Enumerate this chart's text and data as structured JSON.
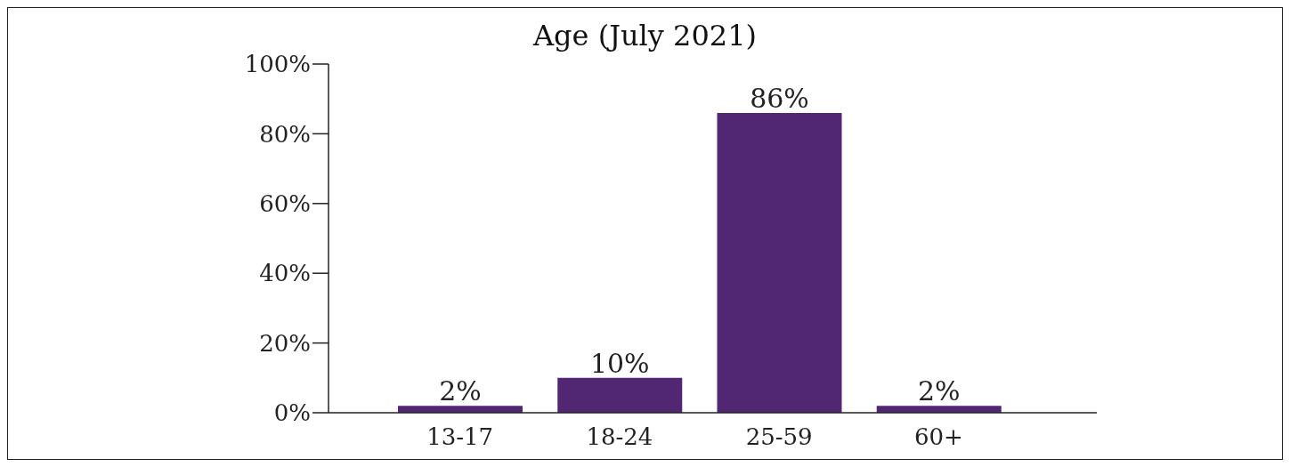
{
  "chart_data": {
    "type": "bar",
    "title": "Age (July 2021)",
    "categories": [
      "13-17",
      "18-24",
      "25-59",
      "60+"
    ],
    "values": [
      2,
      10,
      86,
      2
    ],
    "color": "#512673",
    "value_labels": [
      "2%",
      "10%",
      "86%",
      "2%"
    ],
    "ylim": [
      0,
      100
    ],
    "yticks": [
      {
        "value": 0,
        "label": "0%"
      },
      {
        "value": 20,
        "label": "20%"
      },
      {
        "value": 40,
        "label": "40%"
      },
      {
        "value": 60,
        "label": "60%"
      },
      {
        "value": 80,
        "label": "80%"
      },
      {
        "value": 100,
        "label": "100%"
      }
    ],
    "grid": false,
    "legend": false
  }
}
